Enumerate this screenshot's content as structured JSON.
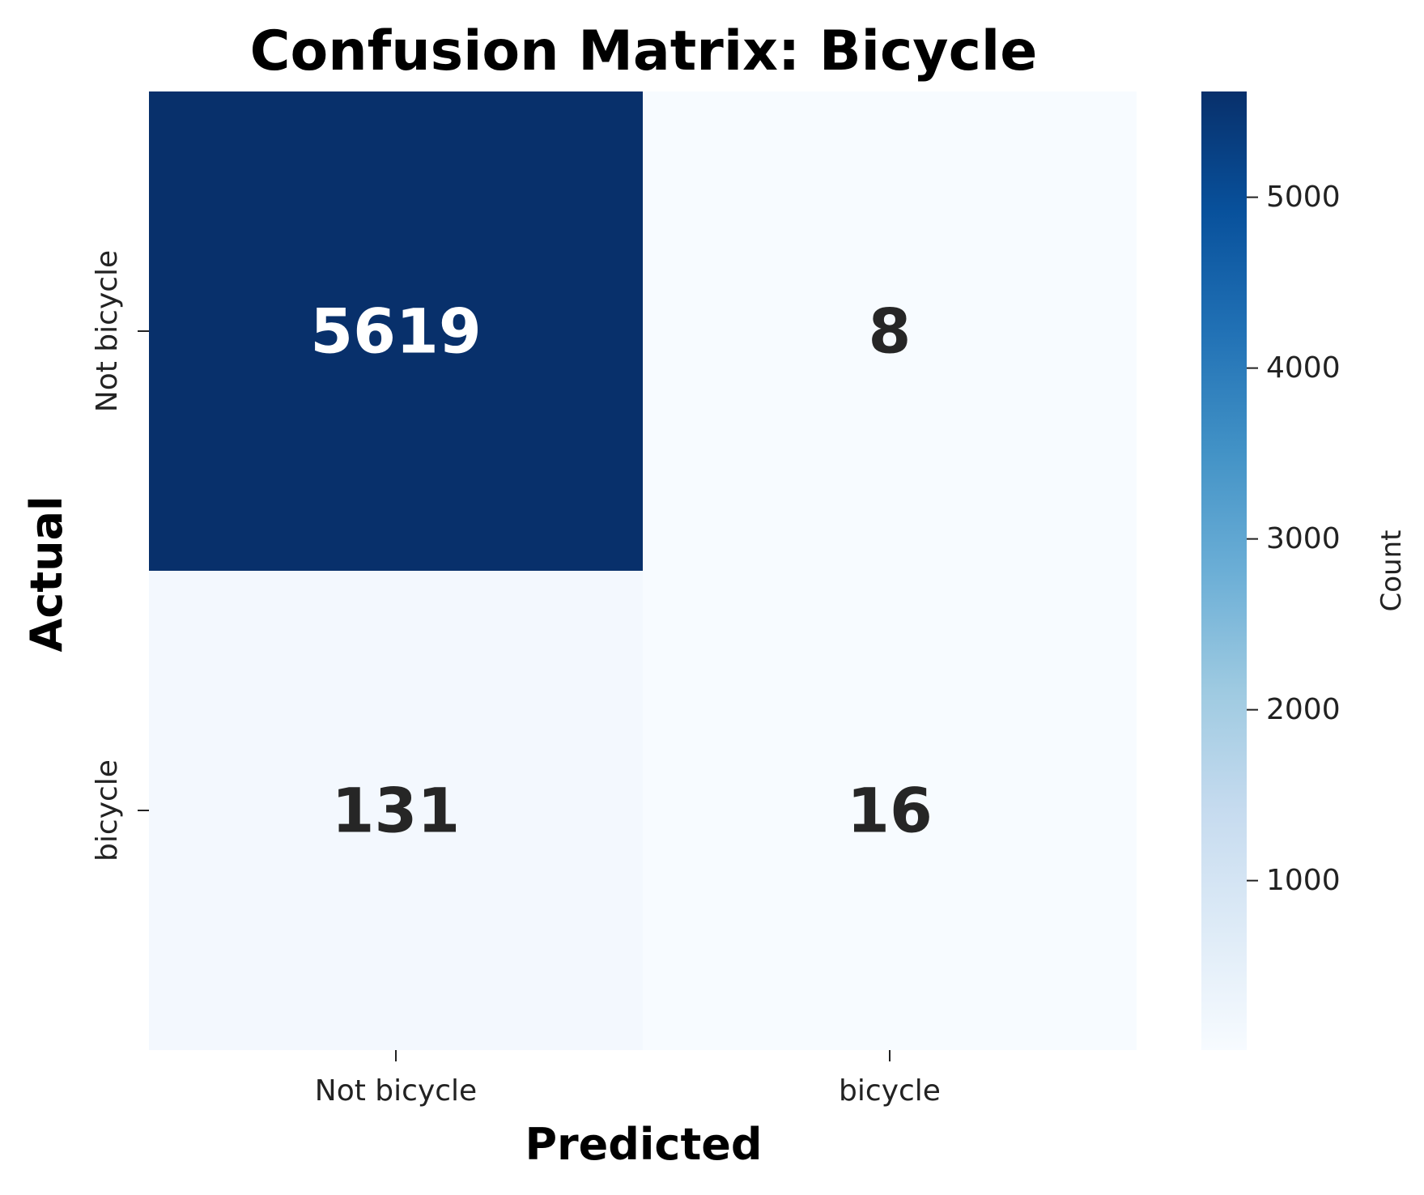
{
  "chart_data": {
    "type": "heatmap",
    "title": "Confusion Matrix: Bicycle",
    "xlabel": "Predicted",
    "ylabel": "Actual",
    "x_categories": [
      "Not bicycle",
      "bicycle"
    ],
    "y_categories": [
      "Not bicycle",
      "bicycle"
    ],
    "values": [
      [
        5619,
        8
      ],
      [
        131,
        16
      ]
    ],
    "colorbar": {
      "label": "Count",
      "range": [
        8,
        5619
      ],
      "ticks": [
        1000,
        2000,
        3000,
        4000,
        5000
      ],
      "tick_labels": [
        "1000",
        "2000",
        "3000",
        "4000",
        "5000"
      ]
    },
    "colormap": "Blues",
    "colors": {
      "low": "#f7fbff",
      "high": "#08306b",
      "text_dark": "#262626",
      "text_light": "#ffffff"
    }
  }
}
